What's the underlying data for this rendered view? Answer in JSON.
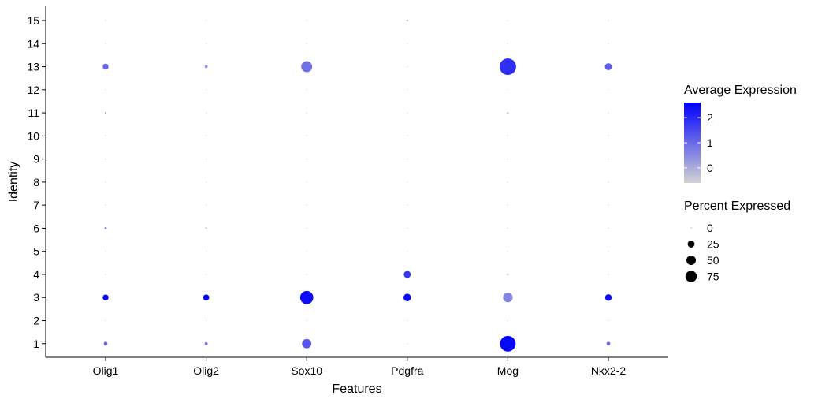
{
  "chart_data": {
    "type": "dot",
    "xlabel": "Features",
    "ylabel": "Identity",
    "features": [
      "Olig1",
      "Olig2",
      "Sox10",
      "Pdgfra",
      "Mog",
      "Nkx2-2"
    ],
    "identities": [
      "1",
      "2",
      "3",
      "4",
      "5",
      "6",
      "7",
      "8",
      "9",
      "10",
      "11",
      "12",
      "13",
      "14",
      "15"
    ],
    "points": [
      {
        "feature": "Olig1",
        "identity": "1",
        "avg_exp": 1.0,
        "pct": 5
      },
      {
        "feature": "Olig1",
        "identity": "2",
        "avg_exp": -0.5,
        "pct": 0
      },
      {
        "feature": "Olig1",
        "identity": "3",
        "avg_exp": 2.5,
        "pct": 12
      },
      {
        "feature": "Olig1",
        "identity": "4",
        "avg_exp": -0.3,
        "pct": 0
      },
      {
        "feature": "Olig1",
        "identity": "5",
        "avg_exp": -0.5,
        "pct": 0
      },
      {
        "feature": "Olig1",
        "identity": "6",
        "avg_exp": 0.5,
        "pct": 2
      },
      {
        "feature": "Olig1",
        "identity": "7",
        "avg_exp": -0.5,
        "pct": 0
      },
      {
        "feature": "Olig1",
        "identity": "8",
        "avg_exp": -0.5,
        "pct": 0
      },
      {
        "feature": "Olig1",
        "identity": "9",
        "avg_exp": -0.5,
        "pct": 0
      },
      {
        "feature": "Olig1",
        "identity": "10",
        "avg_exp": -0.5,
        "pct": 0
      },
      {
        "feature": "Olig1",
        "identity": "11",
        "avg_exp": 0.3,
        "pct": 1
      },
      {
        "feature": "Olig1",
        "identity": "12",
        "avg_exp": -0.5,
        "pct": 0
      },
      {
        "feature": "Olig1",
        "identity": "13",
        "avg_exp": 1.0,
        "pct": 12
      },
      {
        "feature": "Olig1",
        "identity": "14",
        "avg_exp": -0.5,
        "pct": 0
      },
      {
        "feature": "Olig1",
        "identity": "15",
        "avg_exp": -0.5,
        "pct": 0
      },
      {
        "feature": "Olig2",
        "identity": "1",
        "avg_exp": 1.0,
        "pct": 3
      },
      {
        "feature": "Olig2",
        "identity": "2",
        "avg_exp": -0.5,
        "pct": 0
      },
      {
        "feature": "Olig2",
        "identity": "3",
        "avg_exp": 2.5,
        "pct": 13
      },
      {
        "feature": "Olig2",
        "identity": "4",
        "avg_exp": -0.5,
        "pct": 0
      },
      {
        "feature": "Olig2",
        "identity": "5",
        "avg_exp": -0.5,
        "pct": 0
      },
      {
        "feature": "Olig2",
        "identity": "6",
        "avg_exp": 0.0,
        "pct": 1
      },
      {
        "feature": "Olig2",
        "identity": "7",
        "avg_exp": -0.5,
        "pct": 0
      },
      {
        "feature": "Olig2",
        "identity": "8",
        "avg_exp": -0.5,
        "pct": 0
      },
      {
        "feature": "Olig2",
        "identity": "9",
        "avg_exp": -0.5,
        "pct": 0
      },
      {
        "feature": "Olig2",
        "identity": "10",
        "avg_exp": -0.5,
        "pct": 0
      },
      {
        "feature": "Olig2",
        "identity": "11",
        "avg_exp": -0.3,
        "pct": 0
      },
      {
        "feature": "Olig2",
        "identity": "12",
        "avg_exp": -0.5,
        "pct": 0
      },
      {
        "feature": "Olig2",
        "identity": "13",
        "avg_exp": 0.5,
        "pct": 3
      },
      {
        "feature": "Olig2",
        "identity": "14",
        "avg_exp": -0.5,
        "pct": 0
      },
      {
        "feature": "Olig2",
        "identity": "15",
        "avg_exp": -0.5,
        "pct": 0
      },
      {
        "feature": "Sox10",
        "identity": "1",
        "avg_exp": 1.3,
        "pct": 30
      },
      {
        "feature": "Sox10",
        "identity": "2",
        "avg_exp": -0.5,
        "pct": 0
      },
      {
        "feature": "Sox10",
        "identity": "3",
        "avg_exp": 2.4,
        "pct": 60
      },
      {
        "feature": "Sox10",
        "identity": "4",
        "avg_exp": -0.3,
        "pct": 0
      },
      {
        "feature": "Sox10",
        "identity": "5",
        "avg_exp": -0.5,
        "pct": 0
      },
      {
        "feature": "Sox10",
        "identity": "6",
        "avg_exp": -0.2,
        "pct": 0
      },
      {
        "feature": "Sox10",
        "identity": "7",
        "avg_exp": -0.5,
        "pct": 0
      },
      {
        "feature": "Sox10",
        "identity": "8",
        "avg_exp": -0.5,
        "pct": 0
      },
      {
        "feature": "Sox10",
        "identity": "9",
        "avg_exp": -0.5,
        "pct": 0
      },
      {
        "feature": "Sox10",
        "identity": "10",
        "avg_exp": -0.5,
        "pct": 0
      },
      {
        "feature": "Sox10",
        "identity": "11",
        "avg_exp": -0.5,
        "pct": 0
      },
      {
        "feature": "Sox10",
        "identity": "12",
        "avg_exp": -0.5,
        "pct": 0
      },
      {
        "feature": "Sox10",
        "identity": "13",
        "avg_exp": 0.9,
        "pct": 42
      },
      {
        "feature": "Sox10",
        "identity": "14",
        "avg_exp": -0.5,
        "pct": 0
      },
      {
        "feature": "Sox10",
        "identity": "15",
        "avg_exp": -0.5,
        "pct": 0
      },
      {
        "feature": "Pdgfra",
        "identity": "1",
        "avg_exp": -0.5,
        "pct": 0
      },
      {
        "feature": "Pdgfra",
        "identity": "2",
        "avg_exp": -0.5,
        "pct": 0
      },
      {
        "feature": "Pdgfra",
        "identity": "3",
        "avg_exp": 2.4,
        "pct": 20
      },
      {
        "feature": "Pdgfra",
        "identity": "4",
        "avg_exp": 1.8,
        "pct": 17
      },
      {
        "feature": "Pdgfra",
        "identity": "5",
        "avg_exp": -0.5,
        "pct": 0
      },
      {
        "feature": "Pdgfra",
        "identity": "6",
        "avg_exp": -0.3,
        "pct": 0
      },
      {
        "feature": "Pdgfra",
        "identity": "7",
        "avg_exp": -0.5,
        "pct": 0
      },
      {
        "feature": "Pdgfra",
        "identity": "8",
        "avg_exp": -0.5,
        "pct": 0
      },
      {
        "feature": "Pdgfra",
        "identity": "9",
        "avg_exp": -0.5,
        "pct": 0
      },
      {
        "feature": "Pdgfra",
        "identity": "10",
        "avg_exp": -0.5,
        "pct": 0
      },
      {
        "feature": "Pdgfra",
        "identity": "11",
        "avg_exp": -0.5,
        "pct": 0
      },
      {
        "feature": "Pdgfra",
        "identity": "12",
        "avg_exp": -0.5,
        "pct": 0
      },
      {
        "feature": "Pdgfra",
        "identity": "13",
        "avg_exp": -0.3,
        "pct": 0
      },
      {
        "feature": "Pdgfra",
        "identity": "14",
        "avg_exp": -0.5,
        "pct": 0
      },
      {
        "feature": "Pdgfra",
        "identity": "15",
        "avg_exp": 0.0,
        "pct": 1
      },
      {
        "feature": "Mog",
        "identity": "1",
        "avg_exp": 2.5,
        "pct": 85
      },
      {
        "feature": "Mog",
        "identity": "2",
        "avg_exp": -0.5,
        "pct": 0
      },
      {
        "feature": "Mog",
        "identity": "3",
        "avg_exp": 0.6,
        "pct": 32
      },
      {
        "feature": "Mog",
        "identity": "4",
        "avg_exp": -0.3,
        "pct": 1
      },
      {
        "feature": "Mog",
        "identity": "5",
        "avg_exp": -0.5,
        "pct": 0
      },
      {
        "feature": "Mog",
        "identity": "6",
        "avg_exp": -0.3,
        "pct": 0
      },
      {
        "feature": "Mog",
        "identity": "7",
        "avg_exp": -0.5,
        "pct": 0
      },
      {
        "feature": "Mog",
        "identity": "8",
        "avg_exp": -0.5,
        "pct": 0
      },
      {
        "feature": "Mog",
        "identity": "9",
        "avg_exp": -0.5,
        "pct": 0
      },
      {
        "feature": "Mog",
        "identity": "10",
        "avg_exp": -0.5,
        "pct": 0
      },
      {
        "feature": "Mog",
        "identity": "11",
        "avg_exp": -0.2,
        "pct": 1
      },
      {
        "feature": "Mog",
        "identity": "12",
        "avg_exp": -0.5,
        "pct": 0
      },
      {
        "feature": "Mog",
        "identity": "13",
        "avg_exp": 1.9,
        "pct": 95
      },
      {
        "feature": "Mog",
        "identity": "14",
        "avg_exp": -0.5,
        "pct": 0
      },
      {
        "feature": "Mog",
        "identity": "15",
        "avg_exp": -0.5,
        "pct": 0
      },
      {
        "feature": "Nkx2-2",
        "identity": "1",
        "avg_exp": 1.0,
        "pct": 5
      },
      {
        "feature": "Nkx2-2",
        "identity": "2",
        "avg_exp": -0.5,
        "pct": 0
      },
      {
        "feature": "Nkx2-2",
        "identity": "3",
        "avg_exp": 2.4,
        "pct": 15
      },
      {
        "feature": "Nkx2-2",
        "identity": "4",
        "avg_exp": -0.5,
        "pct": 0
      },
      {
        "feature": "Nkx2-2",
        "identity": "5",
        "avg_exp": -0.5,
        "pct": 0
      },
      {
        "feature": "Nkx2-2",
        "identity": "6",
        "avg_exp": -0.3,
        "pct": 0
      },
      {
        "feature": "Nkx2-2",
        "identity": "7",
        "avg_exp": -0.5,
        "pct": 0
      },
      {
        "feature": "Nkx2-2",
        "identity": "8",
        "avg_exp": -0.5,
        "pct": 0
      },
      {
        "feature": "Nkx2-2",
        "identity": "9",
        "avg_exp": -0.5,
        "pct": 0
      },
      {
        "feature": "Nkx2-2",
        "identity": "10",
        "avg_exp": -0.5,
        "pct": 0
      },
      {
        "feature": "Nkx2-2",
        "identity": "11",
        "avg_exp": -0.5,
        "pct": 0
      },
      {
        "feature": "Nkx2-2",
        "identity": "12",
        "avg_exp": -0.5,
        "pct": 0
      },
      {
        "feature": "Nkx2-2",
        "identity": "13",
        "avg_exp": 1.2,
        "pct": 17
      },
      {
        "feature": "Nkx2-2",
        "identity": "14",
        "avg_exp": -0.5,
        "pct": 0
      },
      {
        "feature": "Nkx2-2",
        "identity": "15",
        "avg_exp": -0.3,
        "pct": 0
      }
    ],
    "color_legend": {
      "title": "Average Expression",
      "range": [
        -0.6,
        2.6
      ],
      "low_color": "#d3d3d3",
      "high_color": "#0000ff",
      "breaks": [
        0,
        1,
        2
      ],
      "break_labels": [
        "0",
        "1",
        "2"
      ]
    },
    "size_legend": {
      "title": "Percent Expressed",
      "max_pct": 95,
      "breaks": [
        0,
        25,
        50,
        75
      ],
      "break_labels": [
        "0",
        "25",
        "50",
        "75"
      ]
    },
    "legend_position": "right",
    "grid": false
  }
}
